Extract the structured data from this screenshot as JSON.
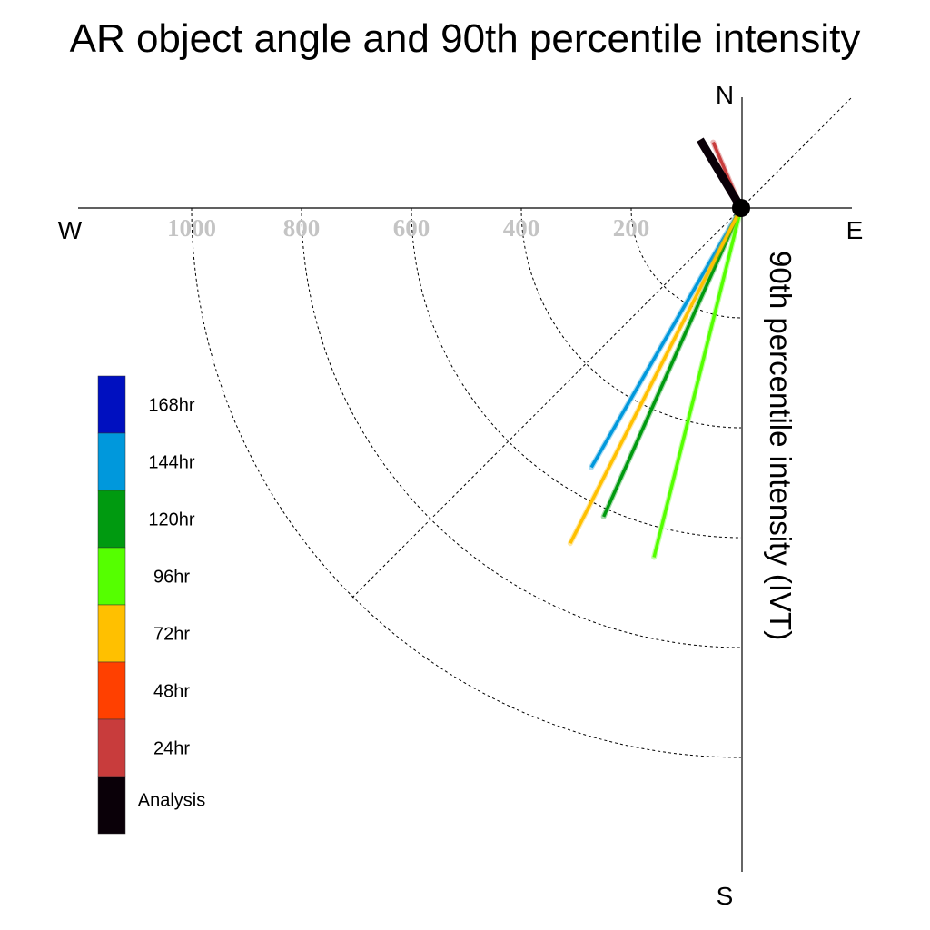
{
  "chart_data": {
    "type": "polar-line",
    "title": "AR object angle and 90th percentile intensity",
    "radial_label": "90th percentile intensity (IVT)",
    "directions": {
      "north": "N",
      "south": "S",
      "east": "E",
      "west": "W"
    },
    "radial_ticks": [
      {
        "value": 200,
        "label": "200"
      },
      {
        "value": 400,
        "label": "400"
      },
      {
        "value": 600,
        "label": "600"
      },
      {
        "value": 800,
        "label": "800"
      },
      {
        "value": 1000,
        "label": "1000"
      }
    ],
    "radial_max": 1200,
    "angle_convention": "degrees counter-clockwise from East (0 = E, 90 = N, 180 = W, 270 = S)",
    "series": [
      {
        "name": "168hr",
        "color": "#0010c0",
        "values": []
      },
      {
        "name": "144hr",
        "color": "#0098dc",
        "values": [
          {
            "angle": 240,
            "intensity": 545
          }
        ]
      },
      {
        "name": "120hr",
        "color": "#009a10",
        "values": [
          {
            "angle": 246,
            "intensity": 615
          }
        ]
      },
      {
        "name": "96hr",
        "color": "#55ff00",
        "values": [
          {
            "angle": 256,
            "intensity": 655
          }
        ]
      },
      {
        "name": "72hr",
        "color": "#ffc000",
        "values": [
          {
            "angle": 243,
            "intensity": 685
          }
        ]
      },
      {
        "name": "48hr",
        "color": "#ff4000",
        "values": []
      },
      {
        "name": "24hr",
        "color": "#c83c3c",
        "values": [
          {
            "angle": 113,
            "intensity": 130
          }
        ]
      },
      {
        "name": "Analysis",
        "color": "#0a0008",
        "values": [
          {
            "angle": 121,
            "intensity": 145
          }
        ]
      }
    ]
  }
}
